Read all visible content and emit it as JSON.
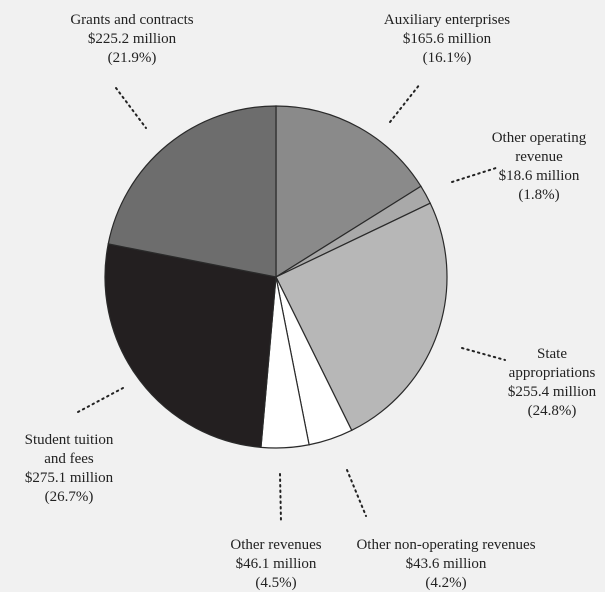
{
  "chart_data": {
    "type": "pie",
    "slices": [
      {
        "lines": [
          "Auxiliary enterprises",
          "$165.6 million",
          "(16.1%)"
        ],
        "value": 16.1,
        "amount": 165.6,
        "color": "#8a8a8a"
      },
      {
        "lines": [
          "Other operating",
          "revenue",
          "$18.6 million",
          "(1.8%)"
        ],
        "value": 1.8,
        "amount": 18.6,
        "color": "#a9a9a9"
      },
      {
        "lines": [
          "State",
          "appropriations",
          "$255.4 million",
          "(24.8%)"
        ],
        "value": 24.8,
        "amount": 255.4,
        "color": "#b7b7b7"
      },
      {
        "lines": [
          "Other non-operating revenues",
          "$43.6 million",
          "(4.2%)"
        ],
        "value": 4.2,
        "amount": 43.6,
        "color": "#ffffff"
      },
      {
        "lines": [
          "Other revenues",
          "$46.1 million",
          "(4.5%)"
        ],
        "value": 4.5,
        "amount": 46.1,
        "color": "#ffffff"
      },
      {
        "lines": [
          "Student tuition",
          "and fees",
          "$275.1 million",
          "(26.7%)"
        ],
        "value": 26.7,
        "amount": 275.1,
        "color": "#231f20"
      },
      {
        "lines": [
          "Grants and contracts",
          "$225.2 million",
          "(21.9%)"
        ],
        "value": 21.9,
        "amount": 225.2,
        "color": "#6d6d6d"
      }
    ]
  }
}
